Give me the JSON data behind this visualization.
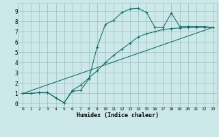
{
  "xlabel": "Humidex (Indice chaleur)",
  "xlim": [
    -0.5,
    23.5
  ],
  "ylim": [
    -0.3,
    9.8
  ],
  "xticks": [
    0,
    1,
    2,
    3,
    4,
    5,
    6,
    7,
    8,
    9,
    10,
    11,
    12,
    13,
    14,
    15,
    16,
    17,
    18,
    19,
    20,
    21,
    22,
    23
  ],
  "yticks": [
    0,
    1,
    2,
    3,
    4,
    5,
    6,
    7,
    8,
    9
  ],
  "bg_color": "#cce8e8",
  "line_color": "#1a7070",
  "line1_x": [
    0,
    1,
    2,
    3,
    4,
    5,
    6,
    7,
    8,
    9,
    10,
    11,
    12,
    13,
    14,
    15,
    16,
    17,
    18,
    19,
    20,
    21,
    22,
    23
  ],
  "line1_y": [
    1.0,
    1.0,
    1.1,
    1.1,
    0.55,
    0.1,
    1.2,
    1.3,
    2.4,
    5.5,
    7.7,
    8.1,
    8.85,
    9.2,
    9.25,
    8.85,
    7.4,
    7.4,
    8.8,
    7.5,
    7.5,
    7.5,
    7.5,
    7.4
  ],
  "line2_x": [
    0,
    1,
    2,
    3,
    5,
    6,
    7,
    8,
    9,
    10,
    11,
    12,
    13,
    14,
    15,
    16,
    17,
    18,
    19,
    20,
    21,
    22,
    23
  ],
  "line2_y": [
    1.0,
    1.0,
    1.1,
    1.1,
    0.1,
    1.3,
    1.8,
    2.5,
    3.2,
    4.0,
    4.7,
    5.3,
    5.9,
    6.5,
    6.8,
    7.0,
    7.2,
    7.3,
    7.35,
    7.38,
    7.4,
    7.4,
    7.4
  ],
  "line3_x": [
    0,
    23
  ],
  "line3_y": [
    1.0,
    7.4
  ]
}
